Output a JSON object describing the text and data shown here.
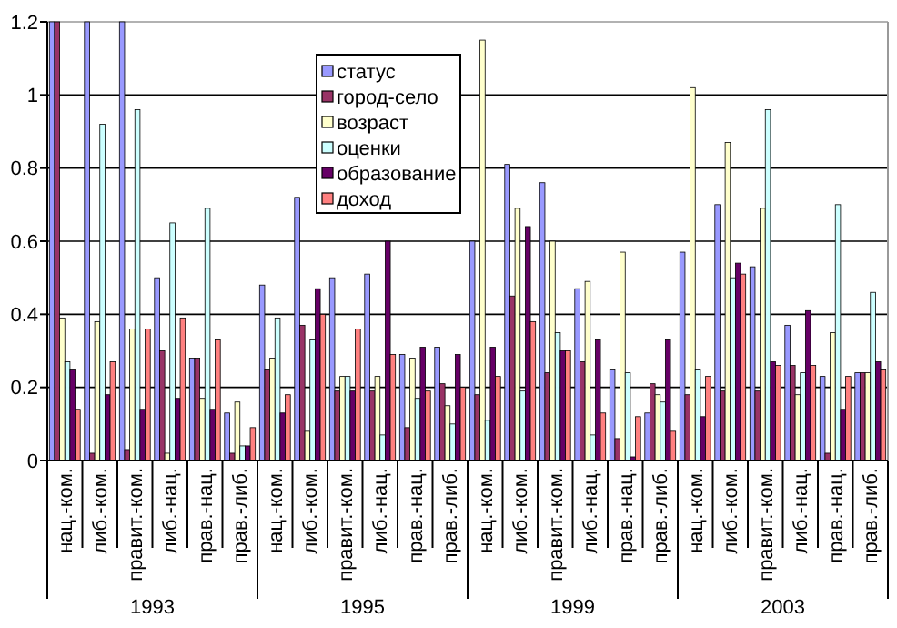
{
  "chart_data": {
    "type": "bar",
    "categories": [
      "нац.-ком.",
      "либ.-ком.",
      "правит.-ком.",
      "либ.-нац.",
      "прав.-нац.",
      "прав.-либ.",
      "нац.-ком.",
      "либ.-ком.",
      "правит.-ком.",
      "либ.-нац.",
      "прав.-нац.",
      "прав.-либ.",
      "нац.-ком.",
      "либ.-ком.",
      "правит.-ком.",
      "либ.-нац.",
      "прав.-нац.",
      "прав.-либ.",
      "нац.-ком.",
      "либ.-ком.",
      "правит.-ком.",
      "либ.-нац.",
      "прав.-нац.",
      "прав.-либ."
    ],
    "series": [
      {
        "name": "статус",
        "color": "#9999ff",
        "values": [
          1.2,
          1.2,
          1.2,
          0.5,
          0.28,
          0.13,
          0.48,
          0.72,
          0.5,
          0.51,
          0.29,
          0.31,
          0.6,
          0.81,
          0.76,
          0.47,
          0.25,
          0.13,
          0.57,
          0.7,
          0.53,
          0.37,
          0.23,
          0.24
        ]
      },
      {
        "name": "город-село",
        "color": "#993366",
        "values": [
          1.2,
          0.02,
          0.03,
          0.3,
          0.28,
          0.02,
          0.25,
          0.37,
          0.19,
          0.19,
          0.09,
          0.21,
          0.18,
          0.45,
          0.24,
          0.27,
          0.06,
          0.21,
          0.18,
          0.19,
          0.19,
          0.26,
          0.02,
          0.24
        ]
      },
      {
        "name": "возраст",
        "color": "#ffffcc",
        "values": [
          0.39,
          0.38,
          0.36,
          0.02,
          0.17,
          0.16,
          0.28,
          0.08,
          0.23,
          0.23,
          0.28,
          0.15,
          1.15,
          0.69,
          0.6,
          0.49,
          0.57,
          0.18,
          1.02,
          0.87,
          0.69,
          0.18,
          0.35,
          0.24
        ]
      },
      {
        "name": "оценки",
        "color": "#ccffff",
        "values": [
          0.27,
          0.92,
          0.96,
          0.65,
          0.69,
          0.04,
          0.39,
          0.33,
          0.23,
          0.07,
          0.17,
          0.1,
          0.11,
          0.19,
          0.35,
          0.07,
          0.24,
          0.16,
          0.25,
          0.5,
          0.96,
          0.24,
          0.7,
          0.46
        ]
      },
      {
        "name": "образование",
        "color": "#660066",
        "values": [
          0.25,
          0.18,
          0.14,
          0.17,
          0.14,
          0.04,
          0.13,
          0.47,
          0.19,
          0.6,
          0.31,
          0.29,
          0.31,
          0.64,
          0.3,
          0.33,
          0.01,
          0.33,
          0.12,
          0.54,
          0.27,
          0.41,
          0.14,
          0.27
        ]
      },
      {
        "name": "доход",
        "color": "#ff8080",
        "values": [
          0.14,
          0.27,
          0.36,
          0.39,
          0.33,
          0.09,
          0.18,
          0.4,
          0.36,
          0.29,
          0.19,
          0.2,
          0.23,
          0.38,
          0.3,
          0.13,
          0.12,
          0.08,
          0.23,
          0.51,
          0.26,
          0.26,
          0.23,
          0.25
        ]
      }
    ],
    "ylim": [
      0,
      1.2
    ],
    "yticks": [
      0,
      {
        "value": 0.2,
        "label": "0.2"
      },
      {
        "value": 0.4,
        "label": "0.4"
      },
      {
        "value": 0.6,
        "label": "0.6"
      },
      {
        "value": 0.8,
        "label": "0.8"
      },
      1,
      {
        "value": 1.2,
        "label": "1.2"
      }
    ],
    "grid": "y",
    "legend": "top",
    "annotations": [
      "1993",
      "1995",
      "1999",
      "2003"
    ]
  }
}
